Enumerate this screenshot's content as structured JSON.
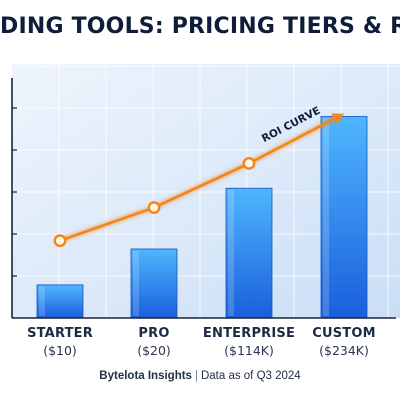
{
  "chart_data": {
    "type": "bar",
    "title": "DING TOOLS: PRICING TIERS & ROI ANA",
    "categories": [
      "STARTER",
      "PRO",
      "ENTERPRISE",
      "CUSTOM"
    ],
    "category_prices": [
      "($10)",
      "($20)",
      "($114K)",
      "($234K)"
    ],
    "values": [
      12,
      25,
      47,
      73
    ],
    "ylim": [
      0,
      92
    ],
    "grid": true,
    "colors": {
      "bar": "#1e6fe6",
      "bar_light": "#4fb6ff",
      "curve": "#f2861b",
      "axis": "#1a2438"
    },
    "overlay": {
      "name": "ROI CURVE",
      "type": "line",
      "points": [
        {
          "category": "STARTER",
          "y": 28
        },
        {
          "category": "PRO",
          "y": 40
        },
        {
          "category": "ENTERPRISE",
          "y": 56
        },
        {
          "category": "CUSTOM",
          "y": 74
        }
      ]
    }
  },
  "footer": {
    "brand": "Bytelota Insights",
    "separator": "|",
    "note": "Data as of Q3 2024"
  }
}
